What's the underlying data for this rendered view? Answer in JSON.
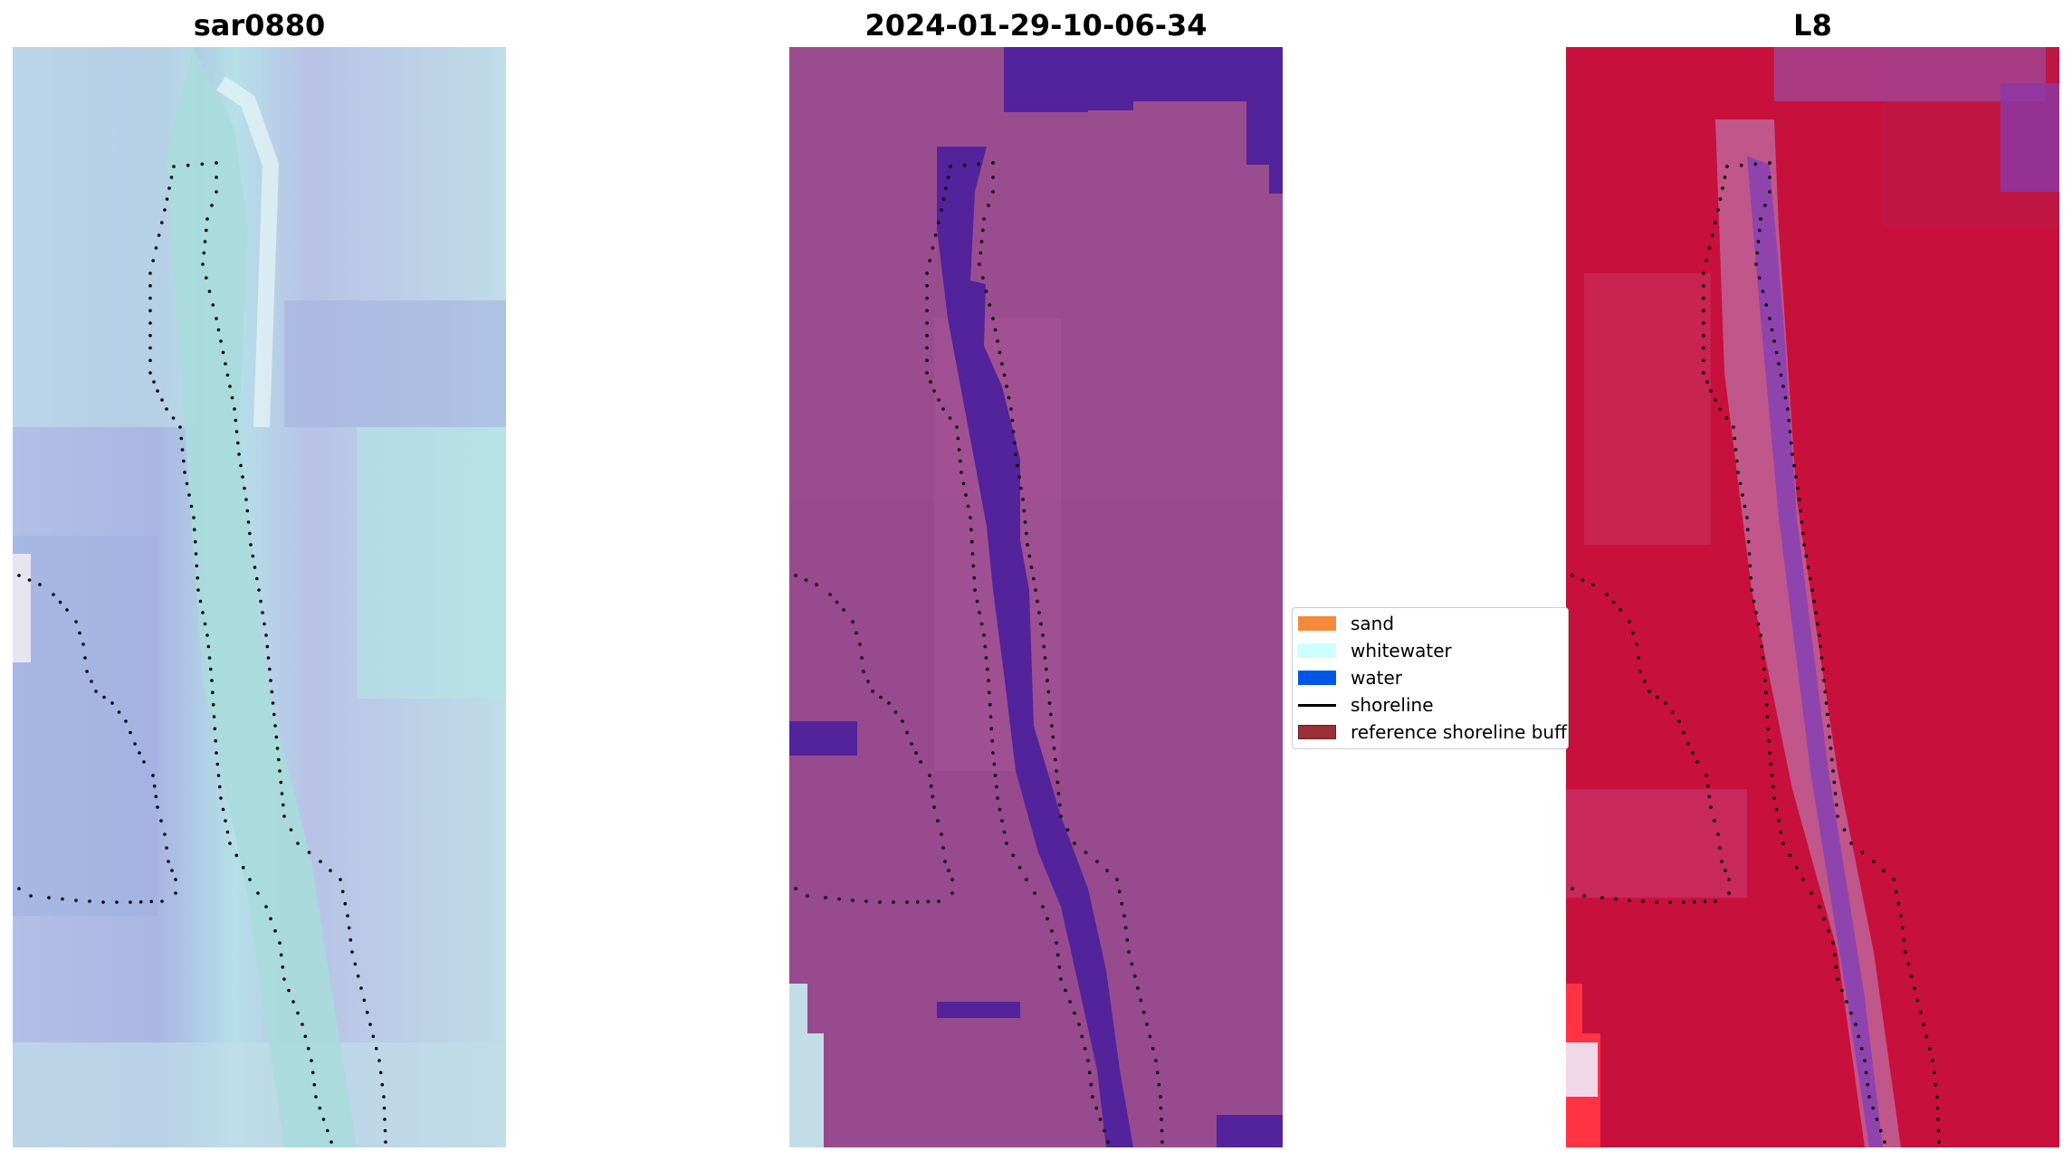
{
  "panels": [
    {
      "title": "sar0880"
    },
    {
      "title": "2024-01-29-10-06-34"
    },
    {
      "title": "L8"
    }
  ],
  "legend": {
    "items": [
      {
        "label": "sand",
        "color": "#f58a3c",
        "kind": "patch"
      },
      {
        "label": "whitewater",
        "color": "#ccfffd",
        "kind": "patch"
      },
      {
        "label": "water",
        "color": "#0057e6",
        "kind": "patch"
      },
      {
        "label": "shoreline",
        "color": "#000000",
        "kind": "line"
      },
      {
        "label": "reference shoreline buffer",
        "color": "#9b2f36",
        "kind": "patch"
      }
    ]
  },
  "colors": {
    "rgb_panel_base": "#b8c6e8",
    "rgb_panel_water": "#a9dede",
    "classified_base": "#9a4d8e",
    "classified_water": "#53239b",
    "index_base": "#c8103c",
    "index_water": "#8a43b0"
  }
}
